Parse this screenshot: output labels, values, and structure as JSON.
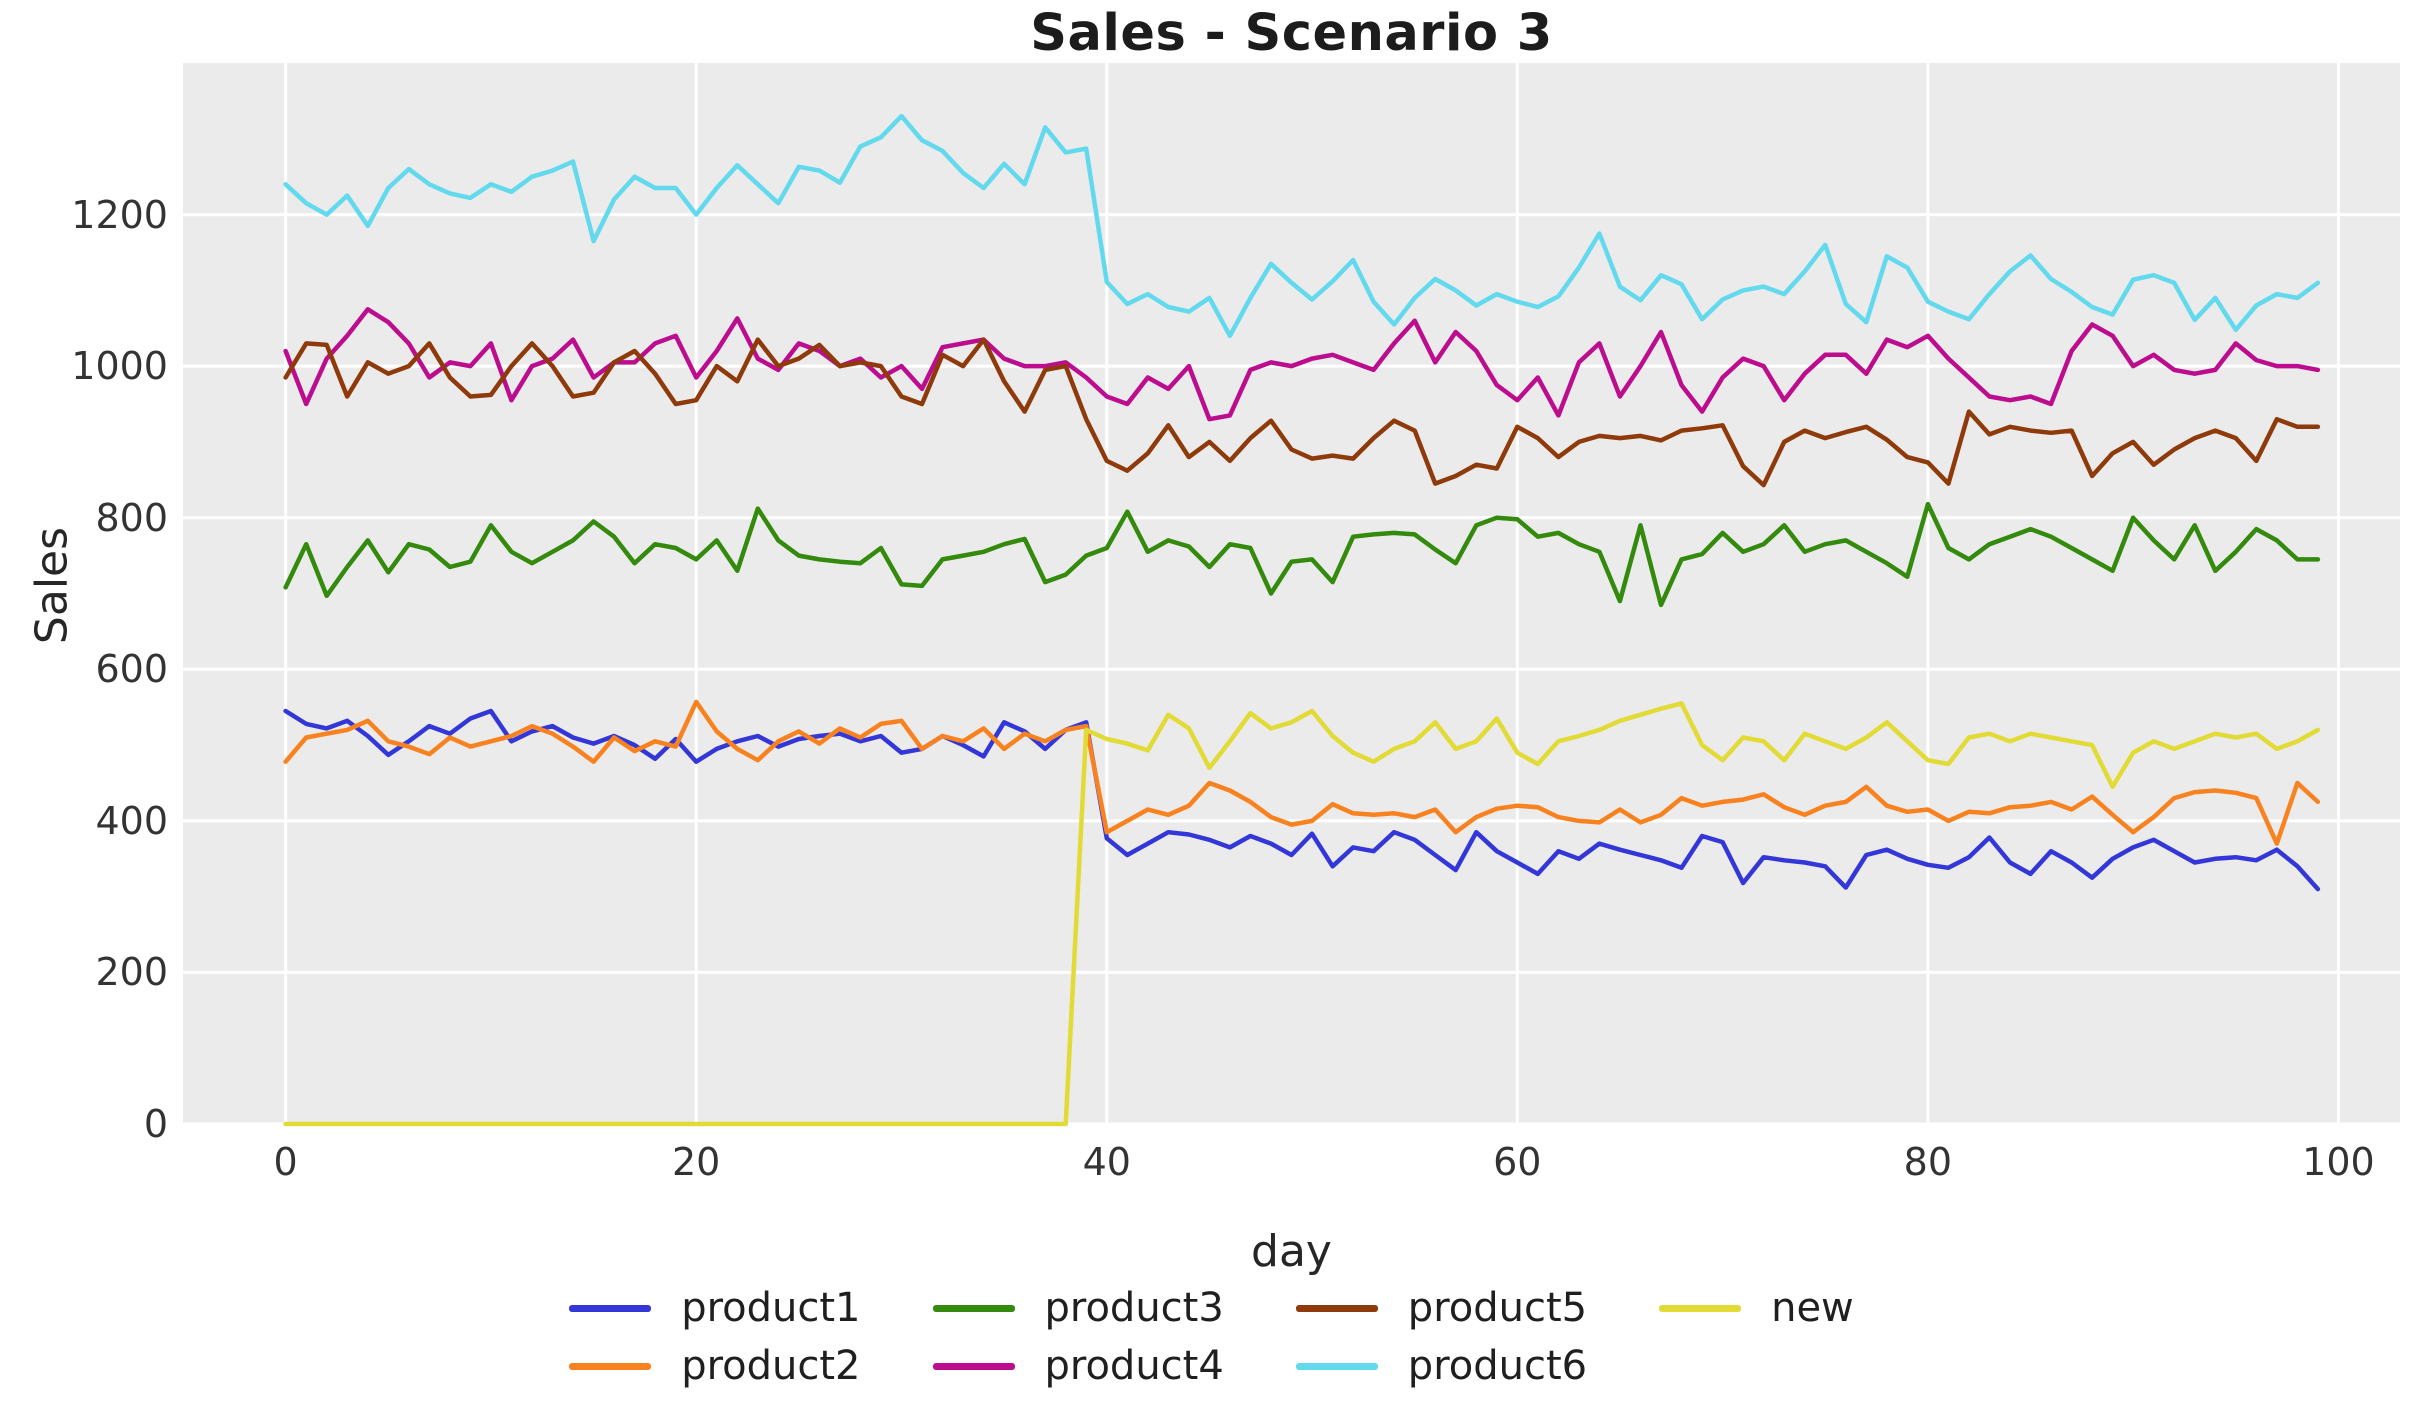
{
  "chart_data": {
    "type": "line",
    "title": "Sales - Scenario 3",
    "xlabel": "day",
    "ylabel": "Sales",
    "xlim": [
      -5,
      103
    ],
    "ylim": [
      0,
      1400
    ],
    "x_ticks": [
      0,
      20,
      40,
      60,
      80,
      100
    ],
    "y_ticks": [
      0,
      200,
      400,
      600,
      800,
      1000,
      1200
    ],
    "grid": true,
    "grid_color": "#ffffff",
    "plot_background": "#ebebeb",
    "legend_position": "bottom",
    "legend_columns": 4,
    "x": [
      0,
      1,
      2,
      3,
      4,
      5,
      6,
      7,
      8,
      9,
      10,
      11,
      12,
      13,
      14,
      15,
      16,
      17,
      18,
      19,
      20,
      21,
      22,
      23,
      24,
      25,
      26,
      27,
      28,
      29,
      30,
      31,
      32,
      33,
      34,
      35,
      36,
      37,
      38,
      39,
      40,
      41,
      42,
      43,
      44,
      45,
      46,
      47,
      48,
      49,
      50,
      51,
      52,
      53,
      54,
      55,
      56,
      57,
      58,
      59,
      60,
      61,
      62,
      63,
      64,
      65,
      66,
      67,
      68,
      69,
      70,
      71,
      72,
      73,
      74,
      75,
      76,
      77,
      78,
      79,
      80,
      81,
      82,
      83,
      84,
      85,
      86,
      87,
      88,
      89,
      90,
      91,
      92,
      93,
      94,
      95,
      96,
      97,
      98,
      99
    ],
    "series": [
      {
        "name": "product1",
        "color": "#3437d8",
        "values": [
          545,
          528,
          522,
          532,
          512,
          487,
          505,
          525,
          515,
          535,
          545,
          505,
          518,
          525,
          510,
          502,
          512,
          500,
          482,
          508,
          478,
          495,
          505,
          512,
          498,
          508,
          512,
          515,
          505,
          512,
          490,
          495,
          512,
          500,
          485,
          530,
          518,
          495,
          520,
          530,
          377,
          355,
          370,
          385,
          382,
          375,
          365,
          380,
          370,
          355,
          383,
          340,
          365,
          360,
          385,
          375,
          355,
          335,
          385,
          360,
          345,
          330,
          360,
          350,
          370,
          362,
          355,
          348,
          338,
          380,
          372,
          318,
          352,
          348,
          345,
          340,
          312,
          355,
          362,
          350,
          342,
          338,
          352,
          378,
          345,
          330,
          360,
          345,
          325,
          350,
          365,
          375,
          360,
          345,
          350,
          352,
          348,
          362,
          340,
          310
        ]
      },
      {
        "name": "product2",
        "color": "#f8821f",
        "values": [
          478,
          510,
          515,
          520,
          532,
          505,
          498,
          488,
          510,
          498,
          505,
          512,
          525,
          515,
          498,
          478,
          510,
          492,
          505,
          498,
          557,
          518,
          495,
          480,
          505,
          518,
          502,
          522,
          510,
          528,
          532,
          495,
          512,
          505,
          522,
          495,
          515,
          505,
          520,
          525,
          385,
          400,
          415,
          408,
          420,
          450,
          440,
          425,
          405,
          395,
          400,
          422,
          410,
          408,
          410,
          405,
          415,
          385,
          405,
          416,
          420,
          418,
          405,
          400,
          398,
          415,
          398,
          408,
          430,
          420,
          425,
          428,
          435,
          418,
          408,
          420,
          425,
          445,
          420,
          412,
          415,
          400,
          412,
          410,
          418,
          420,
          425,
          415,
          432,
          408,
          385,
          405,
          430,
          438,
          440,
          437,
          430,
          370,
          450,
          425
        ]
      },
      {
        "name": "product3",
        "color": "#348a0c",
        "values": [
          708,
          765,
          697,
          735,
          770,
          728,
          765,
          758,
          735,
          742,
          790,
          755,
          740,
          755,
          770,
          795,
          775,
          740,
          765,
          760,
          745,
          770,
          730,
          812,
          770,
          750,
          745,
          742,
          740,
          760,
          712,
          710,
          745,
          750,
          755,
          765,
          772,
          715,
          725,
          750,
          760,
          808,
          755,
          770,
          762,
          735,
          765,
          760,
          700,
          742,
          745,
          715,
          775,
          778,
          780,
          778,
          758,
          740,
          790,
          800,
          798,
          775,
          780,
          765,
          755,
          690,
          790,
          685,
          745,
          752,
          780,
          755,
          765,
          790,
          755,
          765,
          770,
          755,
          740,
          722,
          818,
          760,
          745,
          765,
          775,
          785,
          775,
          760,
          745,
          730,
          800,
          770,
          745,
          790,
          730,
          755,
          785,
          770,
          745,
          745
        ]
      },
      {
        "name": "product4",
        "color": "#bc0d8e",
        "values": [
          1020,
          950,
          1010,
          1040,
          1075,
          1058,
          1030,
          985,
          1005,
          1000,
          1030,
          955,
          1000,
          1010,
          1035,
          985,
          1005,
          1005,
          1030,
          1040,
          985,
          1020,
          1063,
          1010,
          995,
          1030,
          1020,
          1000,
          1010,
          985,
          1000,
          970,
          1025,
          1030,
          1035,
          1010,
          1000,
          1000,
          1005,
          985,
          960,
          950,
          985,
          970,
          1000,
          930,
          935,
          995,
          1005,
          1000,
          1010,
          1015,
          1005,
          995,
          1030,
          1060,
          1005,
          1045,
          1020,
          975,
          955,
          985,
          935,
          1005,
          1030,
          960,
          1000,
          1045,
          975,
          940,
          985,
          1010,
          1000,
          955,
          990,
          1015,
          1015,
          990,
          1035,
          1025,
          1040,
          1010,
          985,
          960,
          955,
          960,
          950,
          1020,
          1055,
          1040,
          1000,
          1015,
          995,
          990,
          995,
          1030,
          1008,
          1000,
          1000,
          995
        ]
      },
      {
        "name": "product5",
        "color": "#8f3a0b",
        "values": [
          985,
          1030,
          1028,
          960,
          1005,
          990,
          1000,
          1030,
          985,
          960,
          962,
          1000,
          1030,
          1000,
          960,
          965,
          1005,
          1020,
          990,
          950,
          955,
          1000,
          980,
          1035,
          1000,
          1010,
          1028,
          1000,
          1005,
          1000,
          960,
          950,
          1015,
          1000,
          1035,
          980,
          940,
          995,
          1000,
          930,
          875,
          862,
          885,
          922,
          880,
          900,
          875,
          905,
          928,
          890,
          878,
          882,
          878,
          905,
          928,
          915,
          845,
          855,
          870,
          865,
          920,
          905,
          880,
          900,
          908,
          905,
          908,
          902,
          915,
          918,
          922,
          868,
          843,
          900,
          915,
          905,
          913,
          920,
          903,
          880,
          873,
          845,
          940,
          910,
          920,
          915,
          912,
          915,
          855,
          885,
          900,
          870,
          890,
          905,
          915,
          905,
          875,
          930,
          920,
          920
        ]
      },
      {
        "name": "product6",
        "color": "#62d9ec",
        "values": [
          1240,
          1215,
          1200,
          1225,
          1185,
          1235,
          1260,
          1240,
          1228,
          1222,
          1240,
          1230,
          1250,
          1258,
          1270,
          1165,
          1220,
          1250,
          1235,
          1235,
          1200,
          1235,
          1265,
          1240,
          1215,
          1263,
          1258,
          1242,
          1290,
          1302,
          1330,
          1298,
          1284,
          1255,
          1235,
          1267,
          1240,
          1315,
          1282,
          1287,
          1111,
          1082,
          1095,
          1078,
          1072,
          1090,
          1040,
          1090,
          1135,
          1110,
          1088,
          1112,
          1140,
          1085,
          1055,
          1090,
          1115,
          1100,
          1080,
          1095,
          1085,
          1078,
          1092,
          1130,
          1175,
          1105,
          1087,
          1120,
          1108,
          1062,
          1088,
          1100,
          1105,
          1095,
          1125,
          1160,
          1082,
          1058,
          1145,
          1130,
          1085,
          1072,
          1062,
          1095,
          1125,
          1146,
          1115,
          1098,
          1078,
          1068,
          1114,
          1120,
          1110,
          1061,
          1090,
          1048,
          1080,
          1095,
          1090,
          1110
        ]
      },
      {
        "name": "new",
        "color": "#e2da35",
        "values": [
          0,
          0,
          0,
          0,
          0,
          0,
          0,
          0,
          0,
          0,
          0,
          0,
          0,
          0,
          0,
          0,
          0,
          0,
          0,
          0,
          0,
          0,
          0,
          0,
          0,
          0,
          0,
          0,
          0,
          0,
          0,
          0,
          0,
          0,
          0,
          0,
          0,
          0,
          0,
          520,
          508,
          502,
          493,
          540,
          522,
          470,
          505,
          542,
          522,
          530,
          545,
          512,
          490,
          478,
          495,
          505,
          530,
          495,
          505,
          535,
          490,
          475,
          505,
          512,
          520,
          532,
          540,
          548,
          555,
          500,
          480,
          510,
          505,
          480,
          515,
          505,
          495,
          510,
          530,
          505,
          480,
          475,
          510,
          515,
          505,
          515,
          510,
          505,
          500,
          445,
          490,
          505,
          495,
          505,
          515,
          510,
          515,
          495,
          505,
          520
        ]
      }
    ]
  }
}
